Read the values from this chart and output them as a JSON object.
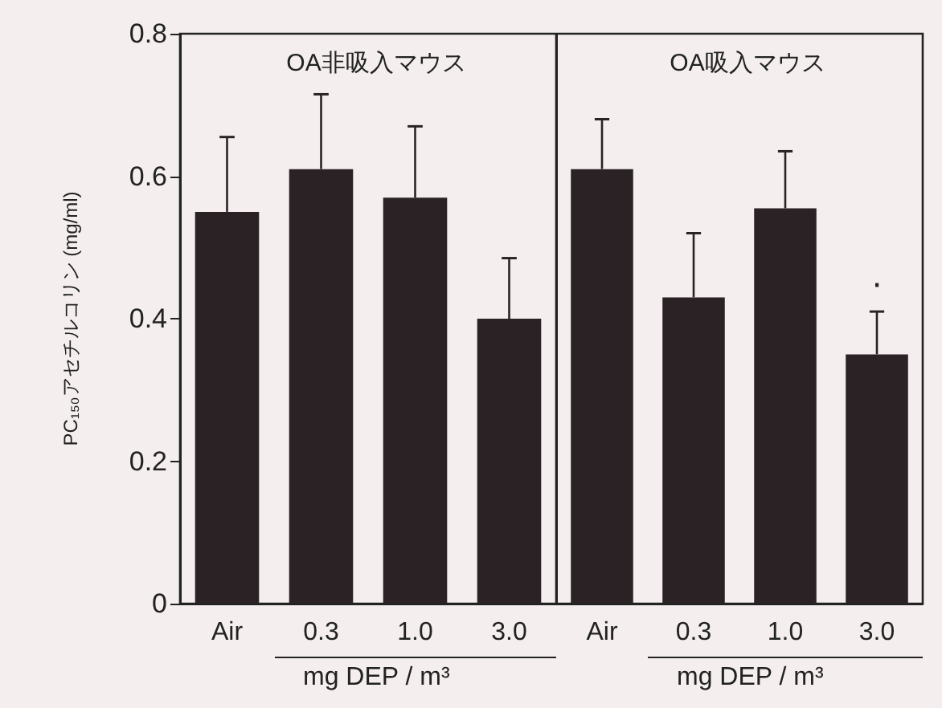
{
  "chart_data": [
    {
      "type": "bar",
      "title": "OA非吸入マウス",
      "ylabel": "PC₁₅₀アセチルコリン (mg/ml)",
      "xlabel": "mg DEP / m³",
      "categories": [
        "Air",
        "0.3",
        "1.0",
        "3.0"
      ],
      "values": [
        0.55,
        0.61,
        0.57,
        0.4
      ],
      "errors": [
        0.105,
        0.105,
        0.1,
        0.085
      ],
      "color": "#2a2224",
      "ylim": [
        0,
        0.8
      ],
      "yticks": [
        0,
        0.2,
        0.4,
        0.6,
        0.8
      ],
      "grid": false
    },
    {
      "type": "bar",
      "title": "OA吸入マウス",
      "xlabel": "mg DEP / m³",
      "categories": [
        "Air",
        "0.3",
        "1.0",
        "3.0"
      ],
      "values": [
        0.61,
        0.43,
        0.555,
        0.35
      ],
      "errors": [
        0.07,
        0.09,
        0.08,
        0.06
      ],
      "color": "#2a2224",
      "ylim": [
        0,
        0.8
      ],
      "yticks": [
        0,
        0.2,
        0.4,
        0.6,
        0.8
      ],
      "grid": false,
      "tick_labels": "x",
      "annotations": [
        "·"
      ]
    }
  ]
}
